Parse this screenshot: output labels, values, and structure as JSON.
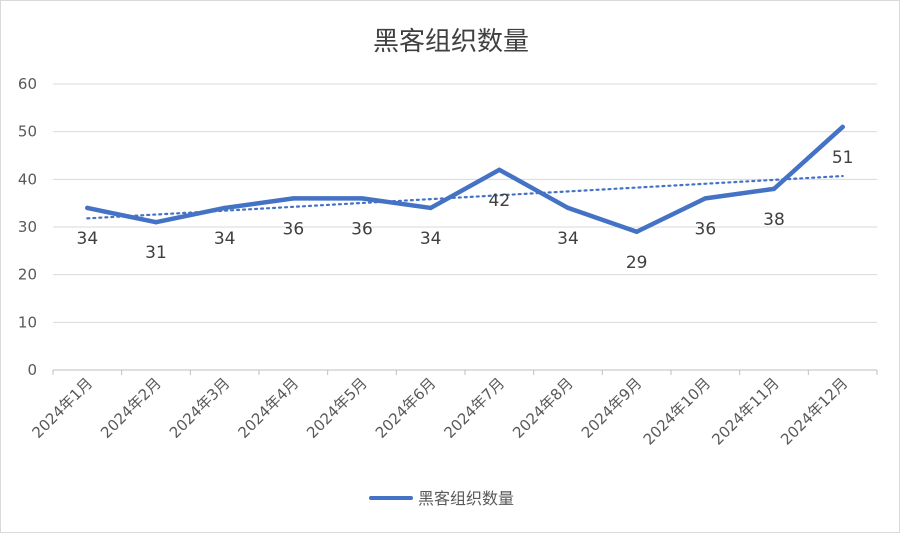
{
  "chart_data": {
    "type": "line",
    "title": "黑客组织数量",
    "categories": [
      "2024年1月",
      "2024年2月",
      "2024年3月",
      "2024年4月",
      "2024年5月",
      "2024年6月",
      "2024年7月",
      "2024年8月",
      "2024年9月",
      "2024年10月",
      "2024年11月",
      "2024年12月"
    ],
    "series": [
      {
        "name": "黑客组织数量",
        "values": [
          34,
          31,
          34,
          36,
          36,
          34,
          42,
          34,
          29,
          36,
          38,
          51
        ],
        "color": "#4472c4",
        "data_labels": [
          "34",
          "31",
          "34",
          "36",
          "36",
          "34",
          "42",
          "34",
          "29",
          "36",
          "38",
          "51"
        ]
      }
    ],
    "trendline": {
      "type": "linear",
      "style": "dotted",
      "color": "#4472c4",
      "in_legend": false
    },
    "ylim": [
      0,
      60
    ],
    "yticks": [
      "0",
      "10",
      "20",
      "30",
      "40",
      "50",
      "60"
    ],
    "grid": true,
    "legend_position": "bottom",
    "xlabel": "",
    "ylabel": ""
  }
}
